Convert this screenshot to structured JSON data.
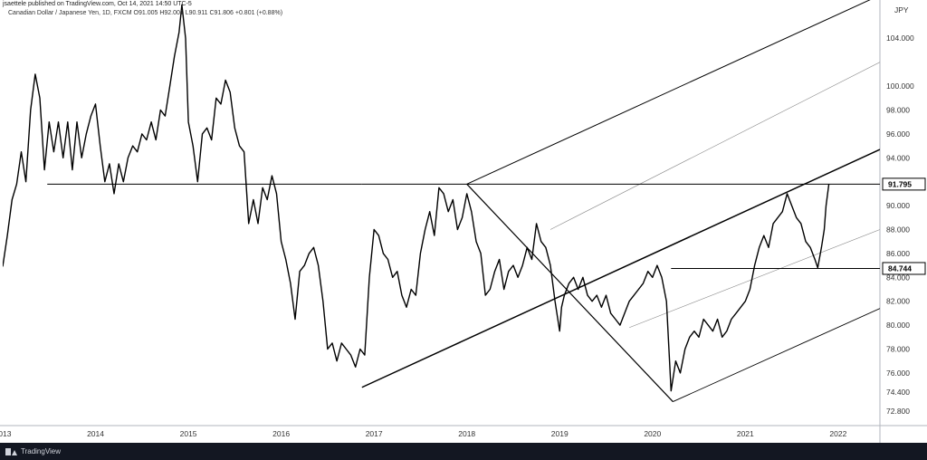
{
  "header": {
    "text": "jsaettele published on TradingView.com, Oct 14, 2021 14:50 UTC-5"
  },
  "legend": {
    "text": "Canadian Dollar / Japanese Yen, 1D, FXCM  O91.005  H92.001  L90.911  C91.806  +0.801 (+0.88%)"
  },
  "footer": {
    "brand": "TradingView",
    "icon": "tradingview-logo-icon"
  },
  "chart_data": {
    "type": "line",
    "title": "Canadian Dollar / Japanese Yen, 1D, FXCM",
    "currency_label": "JPY",
    "y_axis_side": "right",
    "ylim": [
      71.6,
      107.2
    ],
    "xlim": [
      2013.0,
      2022.45
    ],
    "y_ticks": [
      "72.800",
      "74.400",
      "76.000",
      "78.000",
      "80.000",
      "82.000",
      "84.000",
      "86.000",
      "88.000",
      "90.000",
      "94.000",
      "96.000",
      "98.000",
      "100.000",
      "104.000"
    ],
    "y_tick_values": [
      72.8,
      74.4,
      76.0,
      78.0,
      80.0,
      82.0,
      84.0,
      86.0,
      88.0,
      90.0,
      94.0,
      96.0,
      98.0,
      100.0,
      104.0
    ],
    "x_ticks": [
      "2013",
      "2014",
      "2015",
      "2016",
      "2017",
      "2018",
      "2019",
      "2020",
      "2021",
      "2022"
    ],
    "x_tick_values": [
      2013.0,
      2014.0,
      2015.0,
      2016.0,
      2017.0,
      2018.0,
      2019.0,
      2020.0,
      2021.0,
      2022.0
    ],
    "price_badges": [
      {
        "label": "91.795",
        "value": 91.795,
        "color": "#000000"
      },
      {
        "label": "84.744",
        "value": 84.744,
        "color": "#000000"
      }
    ],
    "series": [
      {
        "color": "#000000",
        "points": [
          [
            2013.0,
            84.9
          ],
          [
            2013.05,
            87.5
          ],
          [
            2013.1,
            90.5
          ],
          [
            2013.15,
            91.8
          ],
          [
            2013.2,
            94.5
          ],
          [
            2013.25,
            92.0
          ],
          [
            2013.3,
            98.0
          ],
          [
            2013.35,
            101.0
          ],
          [
            2013.4,
            99.0
          ],
          [
            2013.45,
            93.0
          ],
          [
            2013.5,
            97.0
          ],
          [
            2013.55,
            94.5
          ],
          [
            2013.6,
            97.0
          ],
          [
            2013.65,
            94.0
          ],
          [
            2013.7,
            97.0
          ],
          [
            2013.75,
            93.0
          ],
          [
            2013.8,
            97.0
          ],
          [
            2013.85,
            94.0
          ],
          [
            2013.9,
            96.0
          ],
          [
            2013.95,
            97.5
          ],
          [
            2014.0,
            98.5
          ],
          [
            2014.05,
            95.0
          ],
          [
            2014.1,
            92.0
          ],
          [
            2014.15,
            93.5
          ],
          [
            2014.2,
            91.0
          ],
          [
            2014.25,
            93.5
          ],
          [
            2014.3,
            92.0
          ],
          [
            2014.35,
            94.0
          ],
          [
            2014.4,
            95.0
          ],
          [
            2014.45,
            94.5
          ],
          [
            2014.5,
            96.0
          ],
          [
            2014.55,
            95.5
          ],
          [
            2014.6,
            97.0
          ],
          [
            2014.65,
            95.5
          ],
          [
            2014.7,
            98.0
          ],
          [
            2014.75,
            97.5
          ],
          [
            2014.8,
            100.0
          ],
          [
            2014.85,
            102.5
          ],
          [
            2014.9,
            104.5
          ],
          [
            2014.93,
            106.8
          ],
          [
            2014.97,
            104.0
          ],
          [
            2015.0,
            97.0
          ],
          [
            2015.05,
            95.0
          ],
          [
            2015.1,
            92.0
          ],
          [
            2015.15,
            96.0
          ],
          [
            2015.2,
            96.5
          ],
          [
            2015.25,
            95.5
          ],
          [
            2015.3,
            99.0
          ],
          [
            2015.35,
            98.5
          ],
          [
            2015.4,
            100.5
          ],
          [
            2015.45,
            99.5
          ],
          [
            2015.5,
            96.5
          ],
          [
            2015.55,
            95.0
          ],
          [
            2015.6,
            94.5
          ],
          [
            2015.65,
            88.5
          ],
          [
            2015.7,
            90.5
          ],
          [
            2015.75,
            88.5
          ],
          [
            2015.8,
            91.5
          ],
          [
            2015.85,
            90.5
          ],
          [
            2015.9,
            92.5
          ],
          [
            2015.95,
            91.0
          ],
          [
            2016.0,
            87.0
          ],
          [
            2016.05,
            85.5
          ],
          [
            2016.1,
            83.5
          ],
          [
            2016.15,
            80.5
          ],
          [
            2016.2,
            84.5
          ],
          [
            2016.25,
            85.0
          ],
          [
            2016.3,
            86.0
          ],
          [
            2016.35,
            86.5
          ],
          [
            2016.4,
            85.0
          ],
          [
            2016.45,
            82.0
          ],
          [
            2016.5,
            78.0
          ],
          [
            2016.55,
            78.5
          ],
          [
            2016.6,
            77.0
          ],
          [
            2016.65,
            78.5
          ],
          [
            2016.7,
            78.0
          ],
          [
            2016.75,
            77.5
          ],
          [
            2016.8,
            76.5
          ],
          [
            2016.85,
            78.0
          ],
          [
            2016.9,
            77.5
          ],
          [
            2016.95,
            84.0
          ],
          [
            2017.0,
            88.0
          ],
          [
            2017.05,
            87.5
          ],
          [
            2017.1,
            86.0
          ],
          [
            2017.15,
            85.5
          ],
          [
            2017.2,
            84.0
          ],
          [
            2017.25,
            84.5
          ],
          [
            2017.3,
            82.5
          ],
          [
            2017.35,
            81.5
          ],
          [
            2017.4,
            83.0
          ],
          [
            2017.45,
            82.5
          ],
          [
            2017.5,
            86.0
          ],
          [
            2017.55,
            88.0
          ],
          [
            2017.6,
            89.5
          ],
          [
            2017.65,
            87.5
          ],
          [
            2017.7,
            91.5
          ],
          [
            2017.75,
            91.0
          ],
          [
            2017.8,
            89.5
          ],
          [
            2017.85,
            90.5
          ],
          [
            2017.9,
            88.0
          ],
          [
            2017.95,
            89.0
          ],
          [
            2018.0,
            91.0
          ],
          [
            2018.05,
            89.5
          ],
          [
            2018.1,
            87.0
          ],
          [
            2018.15,
            86.0
          ],
          [
            2018.2,
            82.5
          ],
          [
            2018.25,
            83.0
          ],
          [
            2018.3,
            84.5
          ],
          [
            2018.35,
            85.5
          ],
          [
            2018.4,
            83.0
          ],
          [
            2018.45,
            84.5
          ],
          [
            2018.5,
            85.0
          ],
          [
            2018.55,
            84.0
          ],
          [
            2018.6,
            85.0
          ],
          [
            2018.65,
            86.5
          ],
          [
            2018.7,
            85.5
          ],
          [
            2018.75,
            88.5
          ],
          [
            2018.8,
            87.0
          ],
          [
            2018.85,
            86.5
          ],
          [
            2018.9,
            85.0
          ],
          [
            2018.95,
            82.0
          ],
          [
            2019.0,
            79.5
          ],
          [
            2019.02,
            81.5
          ],
          [
            2019.05,
            82.5
          ],
          [
            2019.1,
            83.5
          ],
          [
            2019.15,
            84.0
          ],
          [
            2019.2,
            83.0
          ],
          [
            2019.25,
            84.0
          ],
          [
            2019.3,
            82.5
          ],
          [
            2019.35,
            82.0
          ],
          [
            2019.4,
            82.5
          ],
          [
            2019.45,
            81.5
          ],
          [
            2019.5,
            82.5
          ],
          [
            2019.55,
            81.0
          ],
          [
            2019.6,
            80.5
          ],
          [
            2019.65,
            80.0
          ],
          [
            2019.7,
            81.0
          ],
          [
            2019.75,
            82.0
          ],
          [
            2019.8,
            82.5
          ],
          [
            2019.85,
            83.0
          ],
          [
            2019.9,
            83.5
          ],
          [
            2019.95,
            84.5
          ],
          [
            2020.0,
            84.0
          ],
          [
            2020.05,
            85.0
          ],
          [
            2020.1,
            84.0
          ],
          [
            2020.15,
            82.0
          ],
          [
            2020.2,
            74.5
          ],
          [
            2020.25,
            77.0
          ],
          [
            2020.3,
            76.0
          ],
          [
            2020.35,
            78.0
          ],
          [
            2020.4,
            79.0
          ],
          [
            2020.45,
            79.5
          ],
          [
            2020.5,
            79.0
          ],
          [
            2020.55,
            80.5
          ],
          [
            2020.6,
            80.0
          ],
          [
            2020.65,
            79.5
          ],
          [
            2020.7,
            80.5
          ],
          [
            2020.75,
            79.0
          ],
          [
            2020.8,
            79.5
          ],
          [
            2020.85,
            80.5
          ],
          [
            2020.9,
            81.0
          ],
          [
            2020.95,
            81.5
          ],
          [
            2021.0,
            82.0
          ],
          [
            2021.05,
            83.0
          ],
          [
            2021.1,
            85.0
          ],
          [
            2021.15,
            86.5
          ],
          [
            2021.2,
            87.5
          ],
          [
            2021.25,
            86.5
          ],
          [
            2021.3,
            88.5
          ],
          [
            2021.35,
            89.0
          ],
          [
            2021.4,
            89.5
          ],
          [
            2021.45,
            91.0
          ],
          [
            2021.5,
            90.0
          ],
          [
            2021.55,
            89.0
          ],
          [
            2021.6,
            88.5
          ],
          [
            2021.65,
            87.0
          ],
          [
            2021.7,
            86.5
          ],
          [
            2021.75,
            85.5
          ],
          [
            2021.78,
            84.8
          ],
          [
            2021.82,
            86.5
          ],
          [
            2021.85,
            88.0
          ],
          [
            2021.87,
            90.0
          ],
          [
            2021.9,
            91.8
          ]
        ]
      }
    ],
    "trendlines": [
      {
        "points": [
          [
            2013.48,
            91.795
          ],
          [
            2016.87,
            91.795
          ]
        ],
        "width": 1
      },
      {
        "points": [
          [
            2016.87,
            74.8
          ],
          [
            2022.45,
            94.7
          ]
        ],
        "width": 1.5
      },
      {
        "points": [
          [
            2018.0,
            91.8
          ],
          [
            2022.45,
            107.6
          ]
        ],
        "width": 1
      },
      {
        "points": [
          [
            2018.0,
            91.8
          ],
          [
            2020.22,
            73.6
          ]
        ],
        "width": 1.2
      },
      {
        "points": [
          [
            2020.22,
            73.6
          ],
          [
            2022.45,
            81.4
          ]
        ],
        "width": 0.9
      },
      {
        "points": [
          [
            2016.87,
            91.795
          ],
          [
            2022.45,
            91.795
          ]
        ],
        "width": 1
      },
      {
        "points": [
          [
            2020.2,
            84.744
          ],
          [
            2022.45,
            84.744
          ]
        ],
        "width": 1
      }
    ],
    "trendlines_thin": [
      {
        "points": [
          [
            2018.9,
            88.0
          ],
          [
            2022.45,
            102.0
          ]
        ]
      },
      {
        "points": [
          [
            2019.75,
            79.8
          ],
          [
            2022.45,
            88.0
          ]
        ]
      }
    ]
  }
}
